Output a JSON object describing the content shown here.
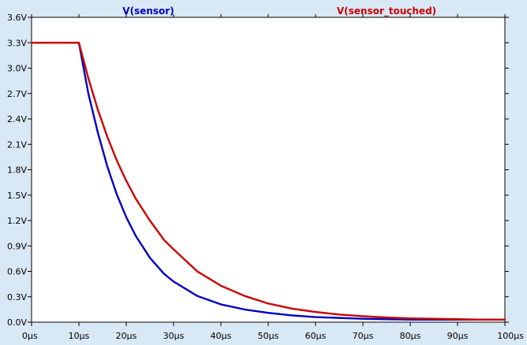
{
  "chart_data": {
    "type": "line",
    "title": "",
    "xlabel": "",
    "ylabel": "",
    "xlim": [
      0,
      100
    ],
    "ylim": [
      0,
      3.6
    ],
    "grid": false,
    "legend_position": "top",
    "x_ticks": [
      {
        "value": 0,
        "label": "0µs"
      },
      {
        "value": 10,
        "label": "10µs"
      },
      {
        "value": 20,
        "label": "20µs"
      },
      {
        "value": 30,
        "label": "30µs"
      },
      {
        "value": 40,
        "label": "40µs"
      },
      {
        "value": 50,
        "label": "50µs"
      },
      {
        "value": 60,
        "label": "60µs"
      },
      {
        "value": 70,
        "label": "70µs"
      },
      {
        "value": 80,
        "label": "80µs"
      },
      {
        "value": 90,
        "label": "90µs"
      },
      {
        "value": 100,
        "label": "100µs"
      }
    ],
    "y_ticks": [
      {
        "value": 0.0,
        "label": "0.0V"
      },
      {
        "value": 0.3,
        "label": "0.3V"
      },
      {
        "value": 0.6,
        "label": "0.6V"
      },
      {
        "value": 0.9,
        "label": "0.9V"
      },
      {
        "value": 1.2,
        "label": "1.2V"
      },
      {
        "value": 1.5,
        "label": "1.5V"
      },
      {
        "value": 1.8,
        "label": "1.8V"
      },
      {
        "value": 2.1,
        "label": "2.1V"
      },
      {
        "value": 2.4,
        "label": "2.4V"
      },
      {
        "value": 2.7,
        "label": "2.7V"
      },
      {
        "value": 3.0,
        "label": "3.0V"
      },
      {
        "value": 3.3,
        "label": "3.3V"
      },
      {
        "value": 3.6,
        "label": "3.6V"
      }
    ],
    "series": [
      {
        "name": "V(sensor)",
        "color": "#0000c0",
        "x": [
          0,
          10,
          12,
          14,
          16,
          18,
          20,
          22,
          25,
          28,
          30,
          35,
          40,
          45,
          50,
          55,
          60,
          65,
          70,
          75,
          80,
          85,
          90,
          95,
          100
        ],
        "y": [
          3.3,
          3.3,
          2.7,
          2.24,
          1.84,
          1.51,
          1.24,
          1.02,
          0.76,
          0.57,
          0.48,
          0.31,
          0.21,
          0.15,
          0.11,
          0.08,
          0.06,
          0.05,
          0.04,
          0.035,
          0.03,
          0.03,
          0.03,
          0.03,
          0.03
        ]
      },
      {
        "name": "V(sensor_touched)",
        "color": "#cc0000",
        "x": [
          0,
          10,
          12,
          14,
          16,
          18,
          20,
          22,
          25,
          28,
          30,
          35,
          40,
          45,
          50,
          55,
          60,
          65,
          70,
          75,
          80,
          85,
          90,
          95,
          100
        ],
        "y": [
          3.3,
          3.3,
          2.88,
          2.51,
          2.19,
          1.91,
          1.67,
          1.46,
          1.2,
          0.97,
          0.86,
          0.6,
          0.43,
          0.31,
          0.22,
          0.16,
          0.12,
          0.09,
          0.07,
          0.055,
          0.045,
          0.04,
          0.035,
          0.03,
          0.03
        ]
      }
    ]
  }
}
